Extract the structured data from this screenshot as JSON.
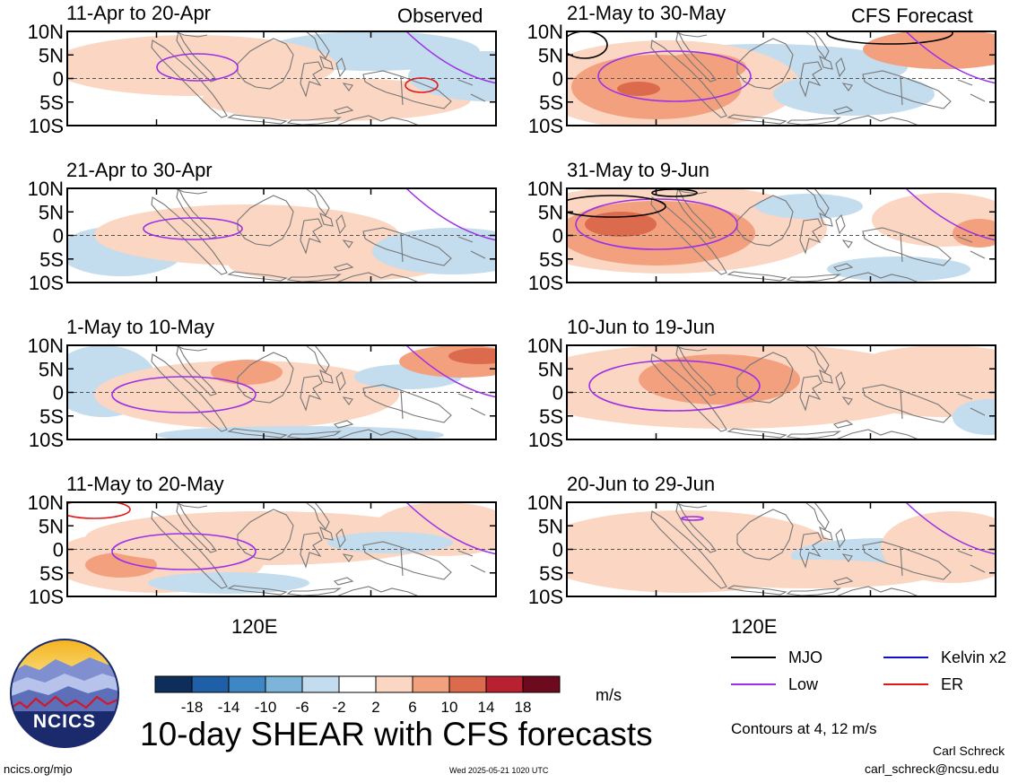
{
  "header": {
    "observed_label": "Observed",
    "forecast_label": "CFS Forecast"
  },
  "panels": {
    "observed": [
      {
        "title": "11-Apr to 20-Apr"
      },
      {
        "title": "21-Apr to 30-Apr"
      },
      {
        "title": "1-May to 10-May"
      },
      {
        "title": "11-May to 20-May"
      }
    ],
    "forecast": [
      {
        "title": "21-May to 30-May"
      },
      {
        "title": "31-May to 9-Jun"
      },
      {
        "title": "10-Jun to 19-Jun"
      },
      {
        "title": "20-Jun to 29-Jun"
      }
    ]
  },
  "axes": {
    "lat_labels": [
      "10N",
      "5N",
      "0",
      "5S",
      "10S"
    ],
    "lon_label": "120E"
  },
  "colorbar": {
    "ticks": [
      "-18",
      "-14",
      "-10",
      "-6",
      "-2",
      "2",
      "6",
      "10",
      "14",
      "18"
    ],
    "colors": [
      "#0d2d5a",
      "#1f5fa8",
      "#3f86c4",
      "#7db4da",
      "#c3dcee",
      "#ffffff",
      "#fbd6c2",
      "#f2a07e",
      "#dc6b4e",
      "#b92030",
      "#6e0a1e"
    ],
    "unit": "m/s"
  },
  "legend": {
    "items": [
      {
        "label": "MJO",
        "color": "#000000"
      },
      {
        "label": "Kelvin x2",
        "color": "#1010c8"
      },
      {
        "label": "Low",
        "color": "#9b30e8"
      },
      {
        "label": "ER",
        "color": "#e01818"
      }
    ],
    "contours_note": "Contours at 4, 12 m/s"
  },
  "footer": {
    "title": "10-day SHEAR with CFS forecasts",
    "url": "ncics.org/mjo",
    "timestamp": "Wed 2025-05-21 1020 UTC",
    "author": "Carl Schreck",
    "email": "carl_schreck@ncsu.edu",
    "logo_text": "NCICS"
  }
}
